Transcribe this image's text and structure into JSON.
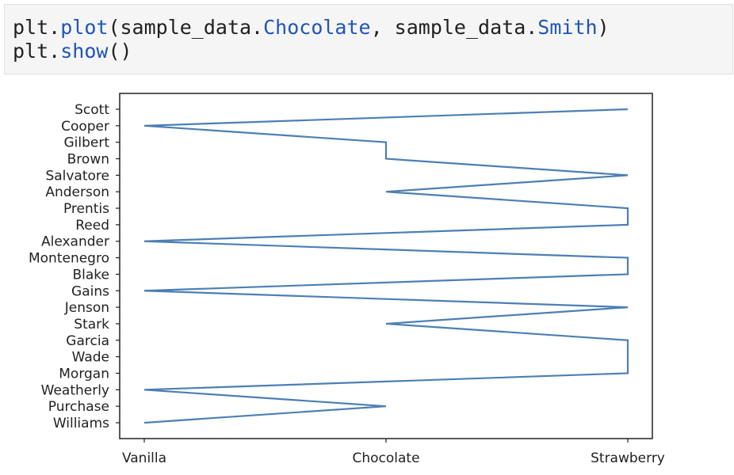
{
  "code_cell": {
    "lines": [
      [
        {
          "text": "plt.",
          "kind": "plain"
        },
        {
          "text": "plot",
          "kind": "fn"
        },
        {
          "text": "(sample_data.",
          "kind": "plain"
        },
        {
          "text": "Chocolate",
          "kind": "fn"
        },
        {
          "text": ", sample_data.",
          "kind": "plain"
        },
        {
          "text": "Smith",
          "kind": "fn"
        },
        {
          "text": ")",
          "kind": "plain"
        }
      ],
      [
        {
          "text": "plt.",
          "kind": "plain"
        },
        {
          "text": "show",
          "kind": "fn"
        },
        {
          "text": "()",
          "kind": "plain"
        }
      ]
    ]
  },
  "colors": {
    "line": "#4c7fb4",
    "function_token": "#1f55b8",
    "code_background": "#f5f5f5"
  },
  "chart_data": {
    "type": "line",
    "title": "",
    "xlabel": "",
    "ylabel": "",
    "x_categories": [
      "Vanilla",
      "Chocolate",
      "Strawberry"
    ],
    "y_categories": [
      "Williams",
      "Purchase",
      "Weatherly",
      "Morgan",
      "Wade",
      "Garcia",
      "Stark",
      "Jenson",
      "Gains",
      "Blake",
      "Montenegro",
      "Alexander",
      "Reed",
      "Prentis",
      "Anderson",
      "Salvatore",
      "Brown",
      "Gilbert",
      "Cooper",
      "Scott"
    ],
    "grid": false,
    "legend": "none",
    "series": [
      {
        "x": [
          "Vanilla",
          "Chocolate",
          "Vanilla",
          "Strawberry",
          "Strawberry",
          "Strawberry",
          "Chocolate",
          "Strawberry",
          "Vanilla",
          "Strawberry",
          "Strawberry",
          "Vanilla",
          "Strawberry",
          "Strawberry",
          "Chocolate",
          "Strawberry",
          "Chocolate",
          "Chocolate",
          "Vanilla",
          "Strawberry"
        ],
        "y": [
          "Williams",
          "Purchase",
          "Weatherly",
          "Morgan",
          "Wade",
          "Garcia",
          "Stark",
          "Jenson",
          "Gains",
          "Blake",
          "Montenegro",
          "Alexander",
          "Reed",
          "Prentis",
          "Anderson",
          "Salvatore",
          "Brown",
          "Gilbert",
          "Cooper",
          "Scott"
        ]
      }
    ]
  }
}
